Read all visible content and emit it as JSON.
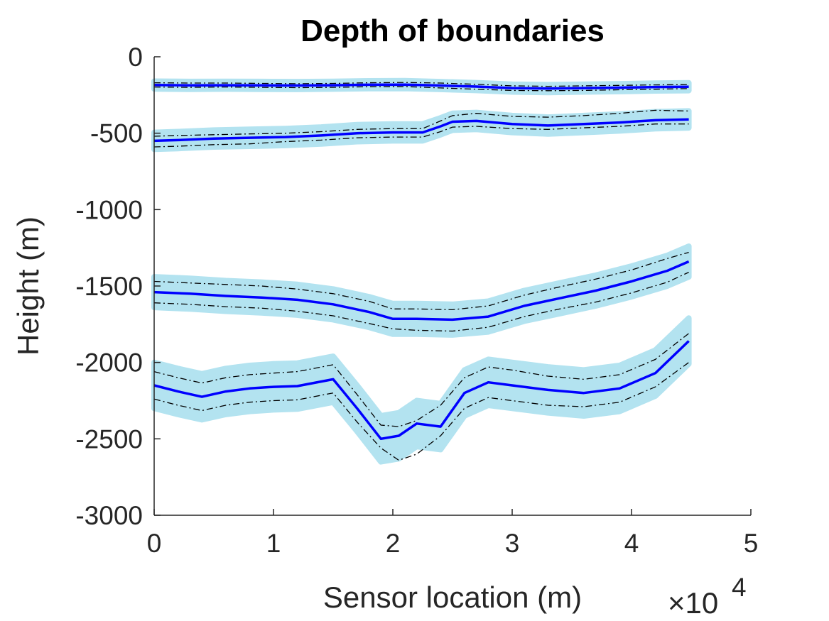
{
  "chart_data": {
    "type": "line",
    "title": "Depth of boundaries",
    "xlabel": "Sensor location (m)",
    "ylabel": "Height (m)",
    "x_multiplier": "×10",
    "x_multiplier_exp": "4",
    "xlim": [
      0,
      50000
    ],
    "ylim": [
      -3000,
      0
    ],
    "x_ticks": [
      0,
      10000,
      20000,
      30000,
      40000,
      50000
    ],
    "x_tick_labels": [
      "0",
      "1",
      "2",
      "3",
      "4",
      "5"
    ],
    "y_ticks": [
      0,
      -500,
      -1000,
      -1500,
      -2000,
      -2500,
      -3000
    ],
    "y_tick_labels": [
      "0",
      "-500",
      "-1000",
      "-1500",
      "-2000",
      "-2500",
      "-3000"
    ],
    "colors": {
      "mean": "#0000ff",
      "band": "#b3e3f0",
      "bounds": "#000000"
    },
    "series": [
      {
        "x": [
          0,
          3000,
          6000,
          9000,
          12000,
          15000,
          18000,
          21000,
          24000,
          27000,
          30000,
          33000,
          36000,
          39000,
          42000,
          44800
        ],
        "mean": [
          -185,
          -187,
          -186,
          -187,
          -188,
          -186,
          -183,
          -182,
          -188,
          -195,
          -205,
          -208,
          -205,
          -202,
          -198,
          -196
        ],
        "upper": [
          -170,
          -172,
          -172,
          -174,
          -176,
          -174,
          -170,
          -168,
          -172,
          -180,
          -190,
          -193,
          -190,
          -187,
          -184,
          -182
        ],
        "lower": [
          -198,
          -200,
          -198,
          -200,
          -202,
          -200,
          -196,
          -195,
          -204,
          -212,
          -220,
          -222,
          -220,
          -216,
          -212,
          -208
        ],
        "band_half_width": 25
      },
      {
        "x": [
          0,
          2000,
          5000,
          8000,
          11000,
          14000,
          17000,
          20000,
          22500,
          24000,
          25000,
          27000,
          30000,
          33000,
          36000,
          39000,
          42000,
          44800
        ],
        "mean": [
          -550,
          -545,
          -535,
          -530,
          -525,
          -515,
          -500,
          -495,
          -495,
          -455,
          -425,
          -420,
          -440,
          -450,
          -440,
          -430,
          -415,
          -410
        ],
        "upper": [
          -520,
          -515,
          -510,
          -505,
          -500,
          -490,
          -475,
          -470,
          -470,
          -420,
          -385,
          -370,
          -390,
          -395,
          -385,
          -370,
          -350,
          -355
        ],
        "lower": [
          -590,
          -585,
          -575,
          -570,
          -555,
          -545,
          -530,
          -525,
          -525,
          -490,
          -460,
          -455,
          -470,
          -475,
          -465,
          -455,
          -440,
          -440
        ],
        "band_half_width": 55
      },
      {
        "x": [
          0,
          3000,
          6000,
          9000,
          12000,
          15000,
          18000,
          20000,
          22000,
          25000,
          28000,
          31000,
          34000,
          37000,
          40000,
          43000,
          44800
        ],
        "mean": [
          -1540,
          -1550,
          -1565,
          -1575,
          -1590,
          -1620,
          -1670,
          -1715,
          -1715,
          -1720,
          -1700,
          -1630,
          -1580,
          -1530,
          -1470,
          -1400,
          -1340
        ],
        "upper": [
          -1470,
          -1480,
          -1490,
          -1500,
          -1520,
          -1550,
          -1600,
          -1650,
          -1650,
          -1655,
          -1630,
          -1560,
          -1505,
          -1455,
          -1395,
          -1320,
          -1280
        ],
        "lower": [
          -1610,
          -1620,
          -1635,
          -1645,
          -1665,
          -1695,
          -1745,
          -1780,
          -1790,
          -1795,
          -1770,
          -1700,
          -1650,
          -1605,
          -1545,
          -1475,
          -1410
        ],
        "band_half_width": 100
      },
      {
        "x": [
          0,
          2000,
          4000,
          6000,
          8000,
          10000,
          12000,
          15000,
          17000,
          19000,
          20500,
          22000,
          24000,
          26000,
          28000,
          30000,
          33000,
          36000,
          39000,
          42000,
          44800
        ],
        "mean": [
          -2150,
          -2190,
          -2225,
          -2190,
          -2170,
          -2160,
          -2155,
          -2110,
          -2300,
          -2500,
          -2480,
          -2400,
          -2420,
          -2200,
          -2130,
          -2150,
          -2180,
          -2200,
          -2170,
          -2070,
          -1860
        ],
        "upper": [
          -2060,
          -2100,
          -2135,
          -2100,
          -2080,
          -2070,
          -2060,
          -2015,
          -2210,
          -2410,
          -2420,
          -2380,
          -2280,
          -2100,
          -2030,
          -2050,
          -2090,
          -2110,
          -2080,
          -1980,
          -1810
        ],
        "lower": [
          -2240,
          -2280,
          -2315,
          -2280,
          -2260,
          -2250,
          -2245,
          -2200,
          -2390,
          -2560,
          -2640,
          -2600,
          -2480,
          -2300,
          -2230,
          -2250,
          -2280,
          -2290,
          -2260,
          -2160,
          -2000
        ],
        "band_half_width": 150
      }
    ]
  }
}
